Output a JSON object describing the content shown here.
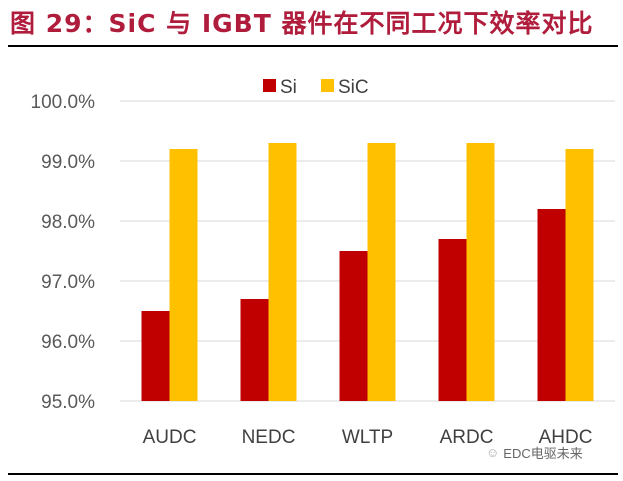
{
  "title": "图 29：SiC 与 IGBT 器件在不同工况下效率对比",
  "watermark": "EDC电驱未来",
  "chart_data": {
    "type": "bar",
    "categories": [
      "AUDC",
      "NEDC",
      "WLTP",
      "ARDC",
      "AHDC"
    ],
    "series": [
      {
        "name": "Si",
        "color": "#c00000",
        "values": [
          96.5,
          96.7,
          97.5,
          97.7,
          98.2
        ]
      },
      {
        "name": "SiC",
        "color": "#ffc000",
        "values": [
          99.2,
          99.3,
          99.3,
          99.3,
          99.2
        ]
      }
    ],
    "ylim": [
      95,
      100
    ],
    "yticks": [
      "95.0%",
      "96.0%",
      "97.0%",
      "98.0%",
      "99.0%",
      "100.0%"
    ],
    "grid": true,
    "legend": "top-center"
  }
}
